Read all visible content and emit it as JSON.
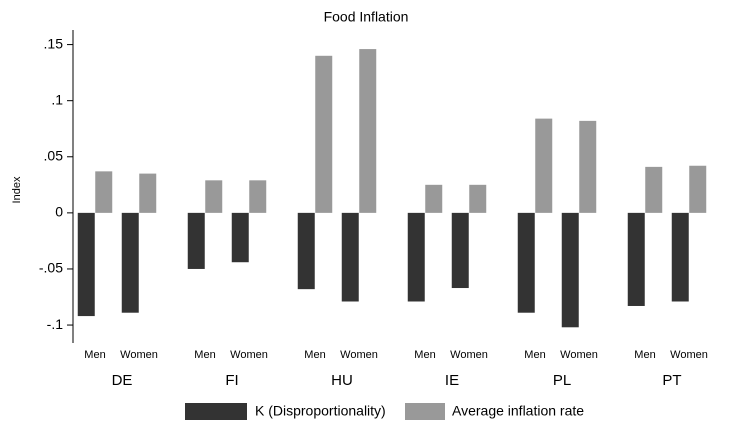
{
  "chart_data": {
    "type": "bar",
    "title": "Food Inflation",
    "ylabel": "Index",
    "groups": [
      "DE",
      "FI",
      "HU",
      "IE",
      "PL",
      "PT"
    ],
    "categories": [
      "Men",
      "Women",
      "Men",
      "Women",
      "Men",
      "Women",
      "Men",
      "Women",
      "Men",
      "Women",
      "Men",
      "Women"
    ],
    "series": [
      {
        "name": "K (Disproportionality)",
        "color": "#333333",
        "values": [
          -0.092,
          -0.089,
          -0.05,
          -0.044,
          -0.068,
          -0.079,
          -0.079,
          -0.067,
          -0.089,
          -0.102,
          -0.083,
          -0.079
        ]
      },
      {
        "name": "Average inflation rate",
        "color": "#999999",
        "values": [
          0.037,
          0.035,
          0.029,
          0.029,
          0.14,
          0.146,
          0.025,
          0.025,
          0.084,
          0.082,
          0.041,
          0.042
        ]
      }
    ],
    "ylim": [
      -0.116,
      0.163
    ],
    "yticks": [
      {
        "value": -0.1,
        "label": "-.1"
      },
      {
        "value": -0.05,
        "label": "-.05"
      },
      0,
      {
        "value": 0.05,
        "label": ".05"
      },
      {
        "value": 0.1,
        "label": ".1"
      },
      {
        "value": 0.15,
        "label": ".15"
      }
    ],
    "legend": "bottom"
  }
}
